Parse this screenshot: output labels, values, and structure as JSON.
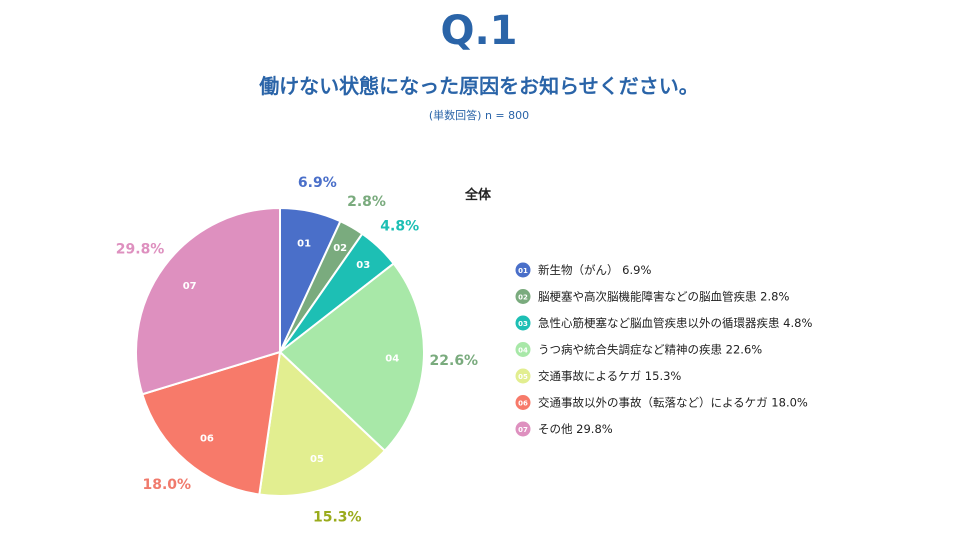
{
  "header": {
    "question_number": "Q.1",
    "question": "働けない状態になった原因をお知らせください。",
    "note": "(単数回答) n = 800"
  },
  "chart_data": {
    "type": "pie",
    "title": "全体",
    "start": "12 o'clock, clockwise",
    "slices": [
      {
        "code": "01",
        "label": "新生物（がん）",
        "value": 6.9,
        "value_label": "6.9%",
        "color": "#4a6fc9",
        "label_color": "#4a6fc9"
      },
      {
        "code": "02",
        "label": "脳梗塞や高次脳機能障害などの脳血管疾患",
        "value": 2.8,
        "value_label": "2.8%",
        "color": "#7aab7e",
        "label_color": "#7aab7e"
      },
      {
        "code": "03",
        "label": "急性心筋梗塞など脳血管疾患以外の循環器疾患",
        "value": 4.8,
        "value_label": "4.8%",
        "color": "#1dbfb4",
        "label_color": "#1dbfb4"
      },
      {
        "code": "04",
        "label": "うつ病や統合失調症など精神の疾患",
        "value": 22.6,
        "value_label": "22.6%",
        "color": "#a8e8a8",
        "label_color": "#7aab7e"
      },
      {
        "code": "05",
        "label": "交通事故によるケガ",
        "value": 15.3,
        "value_label": "15.3%",
        "color": "#e2ee90",
        "label_color": "#9aab1c"
      },
      {
        "code": "06",
        "label": "交通事故以外の事故（転落など）によるケガ",
        "value": 18.0,
        "value_label": "18.0%",
        "color": "#f77a6a",
        "label_color": "#f07a6c"
      },
      {
        "code": "07",
        "label": "その他",
        "value": 29.8,
        "value_label": "29.8%",
        "color": "#de90bf",
        "label_color": "#de90bf"
      }
    ],
    "legend": "right"
  }
}
